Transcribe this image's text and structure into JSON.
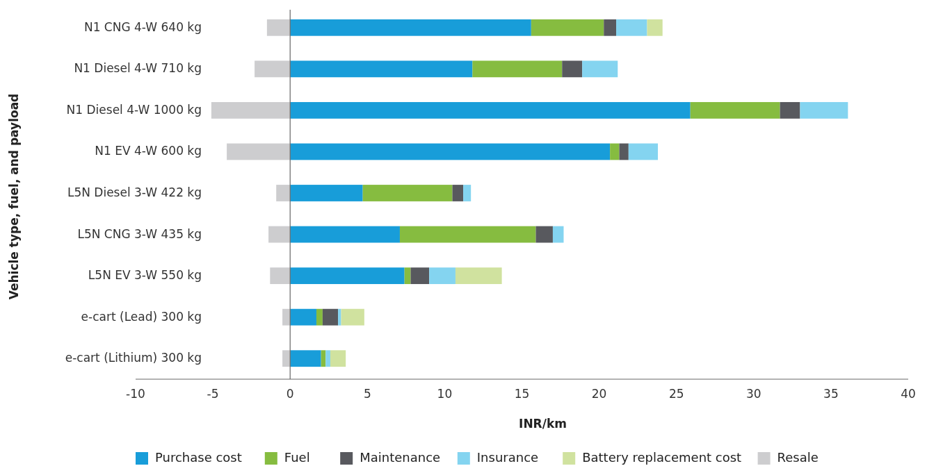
{
  "chart_data": {
    "type": "bar",
    "orientation": "horizontal",
    "stacked": true,
    "xlabel": "INR/km",
    "ylabel": "Vehicle type, fuel, and payload",
    "categories": [
      "N1 CNG 4-W 640 kg",
      "N1 Diesel 4-W 710 kg",
      "N1 Diesel 4-W 1000 kg",
      "N1 EV 4-W 600 kg",
      "L5N Diesel 3-W 422 kg",
      "L5N CNG 3-W 435 kg",
      "L5N EV 3-W 550 kg",
      "e-cart (Lead) 300 kg",
      "e-cart (Lithium) 300 kg"
    ],
    "series": [
      {
        "name": "Purchase cost",
        "color": "#189dd9",
        "values": [
          15.6,
          11.8,
          25.9,
          20.7,
          4.7,
          7.1,
          7.4,
          1.7,
          2.0
        ]
      },
      {
        "name": "Fuel",
        "color": "#86bc40",
        "values": [
          4.7,
          5.8,
          5.8,
          0.6,
          5.8,
          8.8,
          0.4,
          0.4,
          0.3
        ]
      },
      {
        "name": "Maintenance",
        "color": "#58595e",
        "values": [
          0.8,
          1.3,
          1.3,
          0.6,
          0.7,
          1.1,
          1.2,
          1.0,
          null
        ]
      },
      {
        "name": "Insurance",
        "color": "#84d4f0",
        "values": [
          2.0,
          2.3,
          3.1,
          1.9,
          0.5,
          0.7,
          1.7,
          0.2,
          0.3
        ]
      },
      {
        "name": "Battery replacement cost",
        "color": "#d0e29f",
        "values": [
          1.0,
          null,
          null,
          null,
          null,
          null,
          3.0,
          1.5,
          1.0
        ]
      },
      {
        "name": "Resale",
        "color": "#cdcdcf",
        "values": [
          -1.5,
          -2.3,
          -5.1,
          -4.1,
          -0.9,
          -1.4,
          -1.3,
          -0.5,
          -0.5
        ]
      }
    ],
    "xlim": [
      -10,
      40
    ],
    "xticks": [
      -10,
      -5,
      0,
      5,
      10,
      15,
      20,
      25,
      30,
      35,
      40
    ],
    "legend": "bottom"
  }
}
